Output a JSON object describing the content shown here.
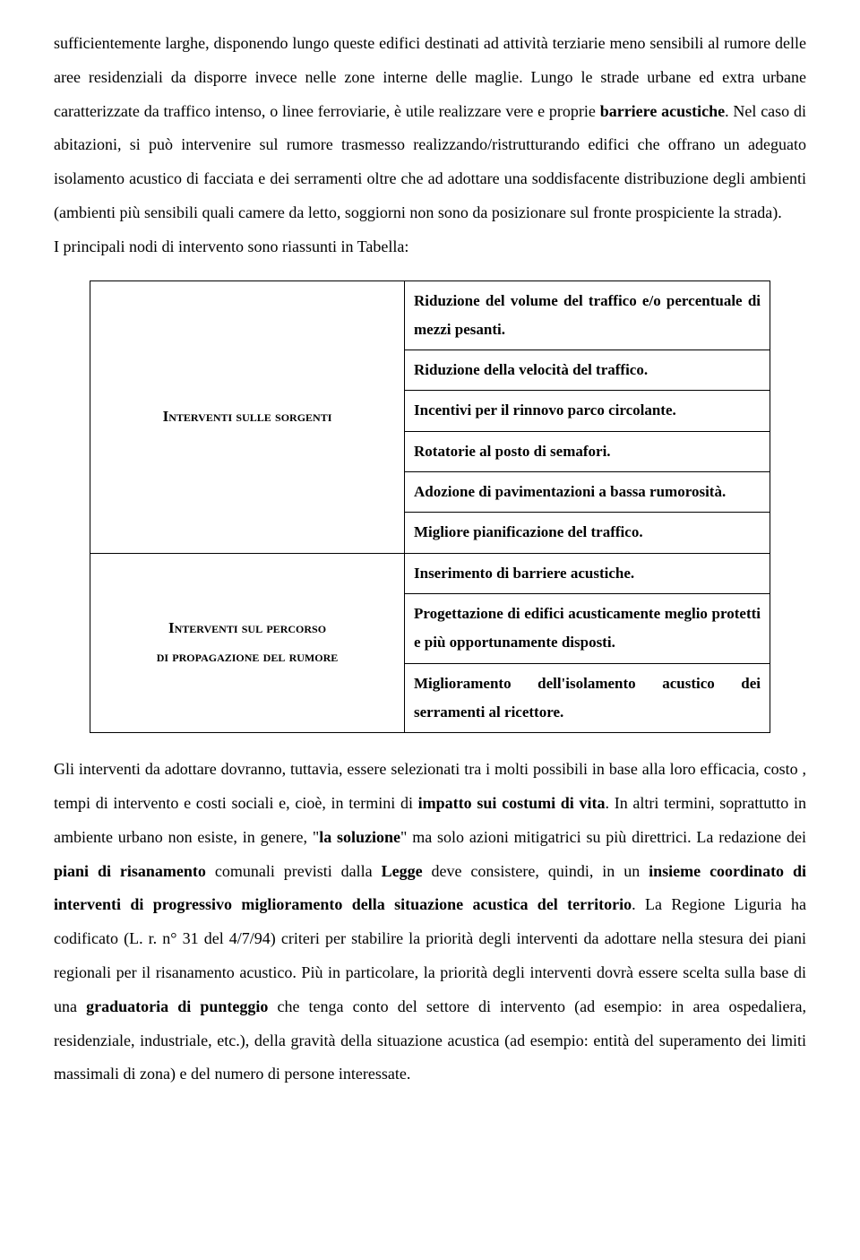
{
  "para1": "sufficientemente larghe, disponendo lungo queste edifici destinati ad attività terziarie meno sensibili al rumore delle aree residenziali da disporre invece nelle zone interne delle maglie. Lungo le strade urbane ed extra urbane caratterizzate da traffico intenso, o linee ferroviarie, è utile realizzare vere e proprie ",
  "para1_bold1": "barriere acustiche",
  "para1_cont": ". Nel caso di abitazioni, si può intervenire sul rumore trasmesso realizzando/ristrutturando edifici che offrano un adeguato isolamento acustico di facciata e dei serramenti oltre che ad adottare una soddisfacente distribuzione degli ambienti (ambienti più sensibili quali camere da letto, soggiorni non sono da posizionare sul fronte prospiciente la strada).",
  "para2": "I principali nodi di intervento sono riassunti in Tabella:",
  "table": {
    "left1": "Interventi sulle sorgenti",
    "left2_line1": "Interventi sul percorso",
    "left2_line2": "di propagazione del rumore",
    "r1": "Riduzione del volume del traffico e/o percentuale di mezzi pesanti.",
    "r2": "Riduzione della velocità del traffico.",
    "r3": "Incentivi per il rinnovo parco circolante.",
    "r4": "Rotatorie al posto di semafori.",
    "r5": "Adozione di pavimentazioni a bassa rumorosità.",
    "r6": "Migliore pianificazione del traffico.",
    "r7": "Inserimento di barriere acustiche.",
    "r8": "Progettazione di edifici acusticamente meglio protetti e più opportunamente disposti.",
    "r9": "Miglioramento dell'isolamento acustico dei serramenti al ricettore."
  },
  "para3_seg1": "Gli interventi da adottare dovranno, tuttavia, essere selezionati tra i molti possibili in base alla loro efficacia, costo , tempi di intervento e costi sociali e, cioè, in termini di ",
  "para3_b1": "impatto sui costumi di vita",
  "para3_seg2": ". In altri termini, soprattutto in ambiente urbano non esiste, in genere, \"",
  "para3_b2": "la soluzione",
  "para3_seg3": "\" ma solo azioni mitigatrici su più direttrici. La redazione dei ",
  "para3_b3": "piani di risanamento",
  "para3_seg4": " comunali previsti dalla ",
  "para3_b4": "Legge",
  "para3_seg5": " deve consistere, quindi, in un ",
  "para3_b5": "insieme coordinato di interventi di progressivo miglioramento della situazione acustica del territorio",
  "para3_seg6": ". La Regione Liguria ha codificato (L. r. n° 31 del 4/7/94) criteri per stabilire la priorità degli interventi da adottare nella stesura dei piani regionali per il risanamento acustico. Più in particolare, la priorità degli interventi dovrà essere scelta sulla base di una ",
  "para3_b6": "graduatoria di punteggio",
  "para3_seg7": " che tenga conto del settore di intervento (ad esempio: in area ospedaliera, residenziale, industriale, etc.), della gravità della situazione acustica (ad esempio: entità del superamento dei limiti massimali di zona) e del numero di persone interessate."
}
